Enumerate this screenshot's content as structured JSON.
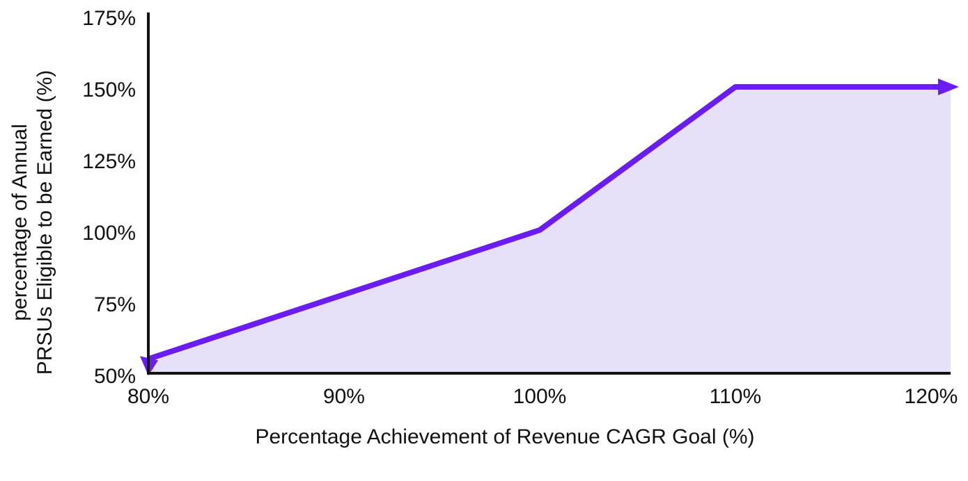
{
  "chart_data": {
    "type": "area",
    "x_label": "Percentage Achievement of Revenue CAGR Goal (%)",
    "y_label": [
      "percentage of Annual",
      "PRSUs Eligible to be Earned (%)"
    ],
    "x": [
      80,
      100,
      110,
      120
    ],
    "values": [
      55,
      100,
      150,
      150
    ],
    "color": "#6a1cf5",
    "fill_color": "#e6e1f9",
    "xlim": [
      80,
      121
    ],
    "xticks": [
      {
        "value": 80,
        "label": "80%"
      },
      {
        "value": 90,
        "label": "90%"
      },
      {
        "value": 100,
        "label": "100%"
      },
      {
        "value": 110,
        "label": "110%"
      },
      {
        "value": 120,
        "label": "120%"
      }
    ],
    "ylim": [
      50,
      175
    ],
    "yticks": [
      {
        "value": 50,
        "label": "50%"
      },
      {
        "value": 75,
        "label": "75%"
      },
      {
        "value": 100,
        "label": "100%"
      },
      {
        "value": 125,
        "label": "125%"
      },
      {
        "value": 150,
        "label": "150%"
      },
      {
        "value": 175,
        "label": "175%"
      }
    ],
    "grid": false
  }
}
